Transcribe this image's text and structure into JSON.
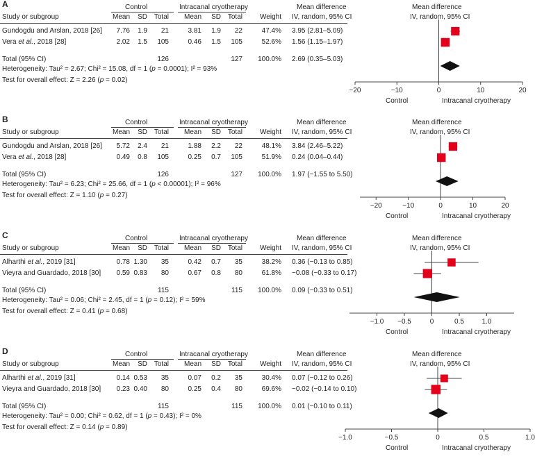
{
  "headers": {
    "study": "Study or subgroup",
    "control": "Control",
    "treatment": "Intracanal cryotherapy",
    "mean": "Mean",
    "sd": "SD",
    "total": "Total",
    "weight": "Weight",
    "md": "Mean difference",
    "md_method": "IV, random, 95% CI"
  },
  "chart_data": [
    {
      "type": "forest",
      "label": "A",
      "studies": [
        {
          "name": "Gundogdu and Arslan, 2018 [26]",
          "c_mean": "7.76",
          "c_sd": "1.9",
          "c_total": "21",
          "t_mean": "3.81",
          "t_sd": "1.9",
          "t_total": "22",
          "weight": "47.4%",
          "ci_text": "3.95 (2.81–5.09)",
          "md": 3.95,
          "lo": 2.81,
          "hi": 5.09,
          "w": 47.4
        },
        {
          "name_parts": [
            "Vera ",
            "et al.",
            ", 2018 [28]"
          ],
          "c_mean": "2.02",
          "c_sd": "1.5",
          "c_total": "105",
          "t_mean": "0.46",
          "t_sd": "1.5",
          "t_total": "105",
          "weight": "52.6%",
          "ci_text": "1.56 (1.15–1.97)",
          "md": 1.56,
          "lo": 1.15,
          "hi": 1.97,
          "w": 52.6
        }
      ],
      "total": {
        "label": "Total (95% CI)",
        "c_total": "126",
        "t_total": "127",
        "weight": "100.0%",
        "ci_text": "2.69 (0.35–5.03)",
        "md": 2.69,
        "lo": 0.35,
        "hi": 5.03
      },
      "heterogeneity": [
        "Heterogeneity: Tau² = 2.67; Chi² = 15.08, df = 1 (",
        "p",
        " = 0.0001); I² = 93%"
      ],
      "overall": [
        "Test for overall effect: Z = 2.26 (",
        "p",
        " = 0.02)"
      ],
      "axis": {
        "min": -20,
        "max": 20,
        "ticks": [
          -20,
          -10,
          0,
          10,
          20
        ],
        "tick_labels": [
          "−20",
          "−10",
          "0",
          "10",
          "20"
        ],
        "left_label": "Control",
        "right_label": "Intracanal cryotherapy"
      }
    },
    {
      "type": "forest",
      "label": "B",
      "studies": [
        {
          "name": "Gundogdu and Arslan, 2018 [26]",
          "c_mean": "5.72",
          "c_sd": "2.4",
          "c_total": "21",
          "t_mean": "1.88",
          "t_sd": "2.2",
          "t_total": "22",
          "weight": "48.1%",
          "ci_text": "3.84 (2.46–5.22)",
          "md": 3.84,
          "lo": 2.46,
          "hi": 5.22,
          "w": 48.1
        },
        {
          "name_parts": [
            "Vera ",
            "et al.",
            ", 2018 [28]"
          ],
          "c_mean": "0.49",
          "c_sd": "0.8",
          "c_total": "105",
          "t_mean": "0.25",
          "t_sd": "0.7",
          "t_total": "105",
          "weight": "51.9%",
          "ci_text": "0.24 (0.04–0.44)",
          "md": 0.24,
          "lo": 0.04,
          "hi": 0.44,
          "w": 51.9
        }
      ],
      "total": {
        "label": "Total (95% CI)",
        "c_total": "126",
        "t_total": "127",
        "weight": "100.0%",
        "ci_text": "1.97 (−1.55 to 5.50)",
        "md": 1.97,
        "lo": -1.55,
        "hi": 5.5
      },
      "heterogeneity": [
        "Heterogeneity: Tau² = 6.23; Chi² = 25.66, df = 1 (",
        "p",
        " < 0.00001); I² = 96%"
      ],
      "overall": [
        "Test for overall effect: Z = 1.10 (",
        "p",
        " = 0.27)"
      ],
      "axis": {
        "min": -25,
        "max": 20,
        "ticks": [
          -20,
          -10,
          0,
          10,
          20
        ],
        "tick_labels": [
          "−20",
          "−10",
          "0",
          "10",
          "20"
        ],
        "left_label": "Control",
        "right_label": "Intracanal cryotherapy"
      }
    },
    {
      "type": "forest",
      "label": "C",
      "studies": [
        {
          "name_parts": [
            "Alharthi ",
            "et al.",
            ", 2019 [31]"
          ],
          "c_mean": "0.78",
          "c_sd": "1.30",
          "c_total": "35",
          "t_mean": "0.42",
          "t_sd": "0.7",
          "t_total": "35",
          "weight": "38.2%",
          "ci_text": "0.36 (−0.13 to 0.85)",
          "md": 0.36,
          "lo": -0.13,
          "hi": 0.85,
          "w": 38.2
        },
        {
          "name": "Vieyra and Guardado, 2018 [30]",
          "c_mean": "0.59",
          "c_sd": "0.83",
          "c_total": "80",
          "t_mean": "0.67",
          "t_sd": "0.8",
          "t_total": "80",
          "weight": "61.8%",
          "ci_text": "−0.08 (−0.33 to 0.17)",
          "md": -0.08,
          "lo": -0.33,
          "hi": 0.17,
          "w": 61.8
        }
      ],
      "total": {
        "label": "Total (95% CI)",
        "c_total": "115",
        "t_total": "115",
        "weight": "100.0%",
        "ci_text": "0.09 (−0.33 to 0.51)",
        "md": 0.09,
        "lo": -0.33,
        "hi": 0.51
      },
      "heterogeneity": [
        "Heterogeneity: Tau² = 0.06; Chi² = 2.45, df = 1 (",
        "p",
        " = 0.12); I² = 59%"
      ],
      "overall": [
        "Test for overall effect: Z = 0.41 (",
        "p",
        " = 0.68)"
      ],
      "axis": {
        "min": -1.5,
        "max": 1.5,
        "ticks": [
          -1.0,
          -0.5,
          0,
          0.5,
          1.0
        ],
        "tick_labels": [
          "−1.0",
          "−0.5",
          "0",
          "0.5",
          "1.0"
        ],
        "left_label": "Control",
        "right_label": "Intracanal cryotherapy"
      }
    },
    {
      "type": "forest",
      "label": "D",
      "studies": [
        {
          "name_parts": [
            "Alharthi ",
            "et al.",
            ", 2019 [31]"
          ],
          "c_mean": "0.14",
          "c_sd": "0.53",
          "c_total": "35",
          "t_mean": "0.07",
          "t_sd": "0.2",
          "t_total": "35",
          "weight": "30.4%",
          "ci_text": "0.07 (−0.12 to 0.26)",
          "md": 0.07,
          "lo": -0.12,
          "hi": 0.26,
          "w": 30.4
        },
        {
          "name": "Vieyra and Guardado, 2018 [30]",
          "c_mean": "0.23",
          "c_sd": "0.40",
          "c_total": "80",
          "t_mean": "0.25",
          "t_sd": "0.4",
          "t_total": "80",
          "weight": "69.6%",
          "ci_text": "−0.02 (−0.14 to 0.10)",
          "md": -0.02,
          "lo": -0.14,
          "hi": 0.1,
          "w": 69.6
        }
      ],
      "total": {
        "label": "Total (95% CI)",
        "c_total": "115",
        "t_total": "115",
        "weight": "100.0%",
        "ci_text": "0.01 (−0.10 to 0.11)",
        "md": 0.01,
        "lo": -0.1,
        "hi": 0.11
      },
      "heterogeneity": [
        "Heterogeneity: Tau² = 0.00; Chi² = 0.62, df = 1 (",
        "p",
        " = 0.43); I² = 0%"
      ],
      "overall": [
        "Test for overall effect: Z = 0.14 (",
        "p",
        " = 0.89)"
      ],
      "axis": {
        "min": -1.0,
        "max": 1.0,
        "ticks": [
          -1.0,
          -0.5,
          0,
          0.5,
          1.0
        ],
        "tick_labels": [
          "−1.0",
          "−0.5",
          "0",
          "0.5",
          "1.0"
        ],
        "left_label": "Control",
        "right_label": "Intracanal cryotherapy"
      }
    }
  ],
  "colors": {
    "marker": "#e3001b",
    "diamond": "#111111",
    "line": "#444444"
  }
}
